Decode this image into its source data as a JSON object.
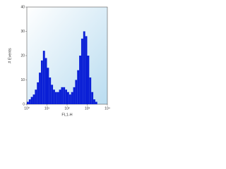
{
  "chart_data": {
    "type": "histogram",
    "xlabel": "FL1-H",
    "ylabel": "# Events",
    "bins": [
      1,
      1.26,
      1.58,
      2,
      2.51,
      3.16,
      3.98,
      5.01,
      6.31,
      7.94,
      10,
      12.6,
      15.8,
      20,
      25.1,
      31.6,
      39.8,
      50.1,
      63.1,
      79.4,
      100,
      126,
      158,
      200,
      251,
      316,
      398,
      501,
      631,
      794,
      1000,
      1260,
      1580,
      2000,
      2510,
      3160,
      3980,
      5010,
      6310,
      7940,
      10000
    ],
    "counts": [
      1,
      2,
      3,
      4,
      6,
      9,
      13,
      18,
      22,
      19,
      15,
      11,
      8,
      6,
      5,
      5,
      6,
      7,
      7,
      6,
      5,
      4,
      5,
      7,
      10,
      14,
      20,
      27,
      30,
      28,
      20,
      11,
      5,
      2,
      1,
      0,
      0,
      0,
      0,
      0
    ],
    "color": "#0a1fd6",
    "xscale": "log",
    "xlim": [
      1,
      10000
    ],
    "xticks": [
      {
        "value": 1,
        "label": "10⁰"
      },
      {
        "value": 10,
        "label": "10¹"
      },
      {
        "value": 100,
        "label": "10²"
      },
      {
        "value": 1000,
        "label": "10³"
      },
      {
        "value": 10000,
        "label": "10⁴"
      }
    ],
    "ylim": [
      0,
      40
    ],
    "yticks": [
      0,
      10,
      20,
      30,
      40
    ]
  }
}
